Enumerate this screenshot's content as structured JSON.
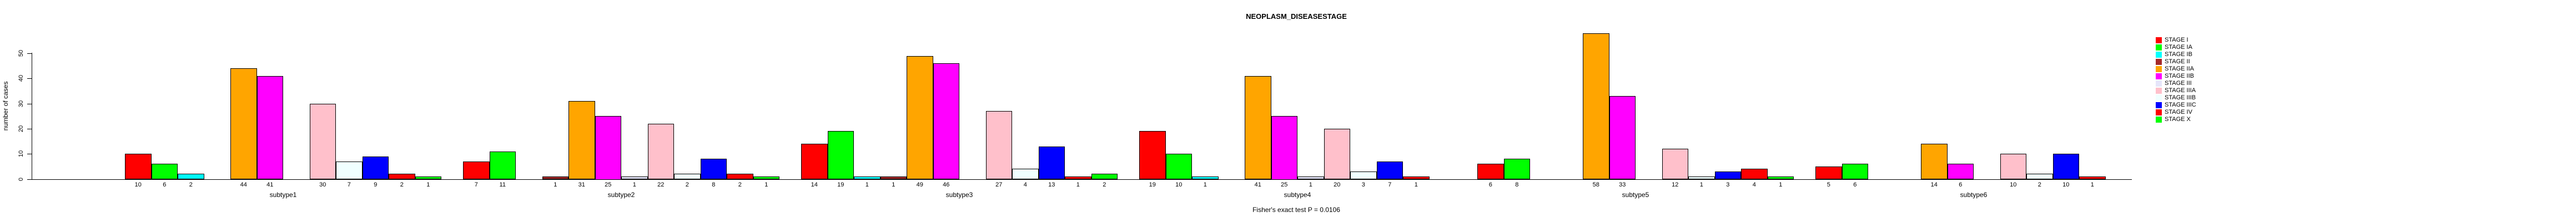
{
  "chart_data": {
    "type": "bar",
    "title": "NEOPLASM_DISEASESTAGE",
    "ylabel": "number of cases",
    "yticks": [
      0,
      10,
      20,
      30,
      40,
      50
    ],
    "ylim": [
      0,
      50
    ],
    "grid": false,
    "legend_position": "right",
    "footnote": "Fisher's exact test P = 0.0106",
    "stages": [
      {
        "label": "STAGE I",
        "color": "#FF0000"
      },
      {
        "label": "STAGE IA",
        "color": "#00FF00"
      },
      {
        "label": "STAGE IB",
        "color": "#00FFFF"
      },
      {
        "label": "STAGE II",
        "color": "#A52A2A"
      },
      {
        "label": "STAGE IIA",
        "color": "#FFA500"
      },
      {
        "label": "STAGE IIB",
        "color": "#FF00FF"
      },
      {
        "label": "STAGE III",
        "color": "#E6E6FA"
      },
      {
        "label": "STAGE IIIA",
        "color": "#FFC0CB"
      },
      {
        "label": "STAGE IIIB",
        "color": "#F0FFFF"
      },
      {
        "label": "STAGE IIIC",
        "color": "#0000FF"
      },
      {
        "label": "STAGE IV",
        "color": "#FF0000"
      },
      {
        "label": "STAGE X",
        "color": "#00FF00"
      }
    ],
    "categories": [
      "subtype1",
      "subtype2",
      "subtype3",
      "subtype4",
      "subtype5",
      "subtype6"
    ],
    "series": [
      {
        "name": "subtype1",
        "values": [
          10,
          6,
          2,
          0,
          44,
          41,
          0,
          30,
          7,
          9,
          2,
          1
        ]
      },
      {
        "name": "subtype2",
        "values": [
          7,
          11,
          0,
          1,
          31,
          25,
          1,
          22,
          2,
          8,
          2,
          1
        ]
      },
      {
        "name": "subtype3",
        "values": [
          14,
          19,
          1,
          1,
          49,
          46,
          0,
          27,
          4,
          13,
          1,
          2
        ]
      },
      {
        "name": "subtype4",
        "values": [
          19,
          10,
          1,
          0,
          41,
          25,
          1,
          20,
          3,
          7,
          1,
          0
        ]
      },
      {
        "name": "subtype5",
        "values": [
          6,
          8,
          0,
          0,
          58,
          33,
          0,
          12,
          1,
          3,
          4,
          1
        ]
      },
      {
        "name": "subtype6",
        "values": [
          5,
          6,
          0,
          0,
          14,
          6,
          0,
          10,
          2,
          10,
          1,
          0
        ]
      }
    ]
  }
}
